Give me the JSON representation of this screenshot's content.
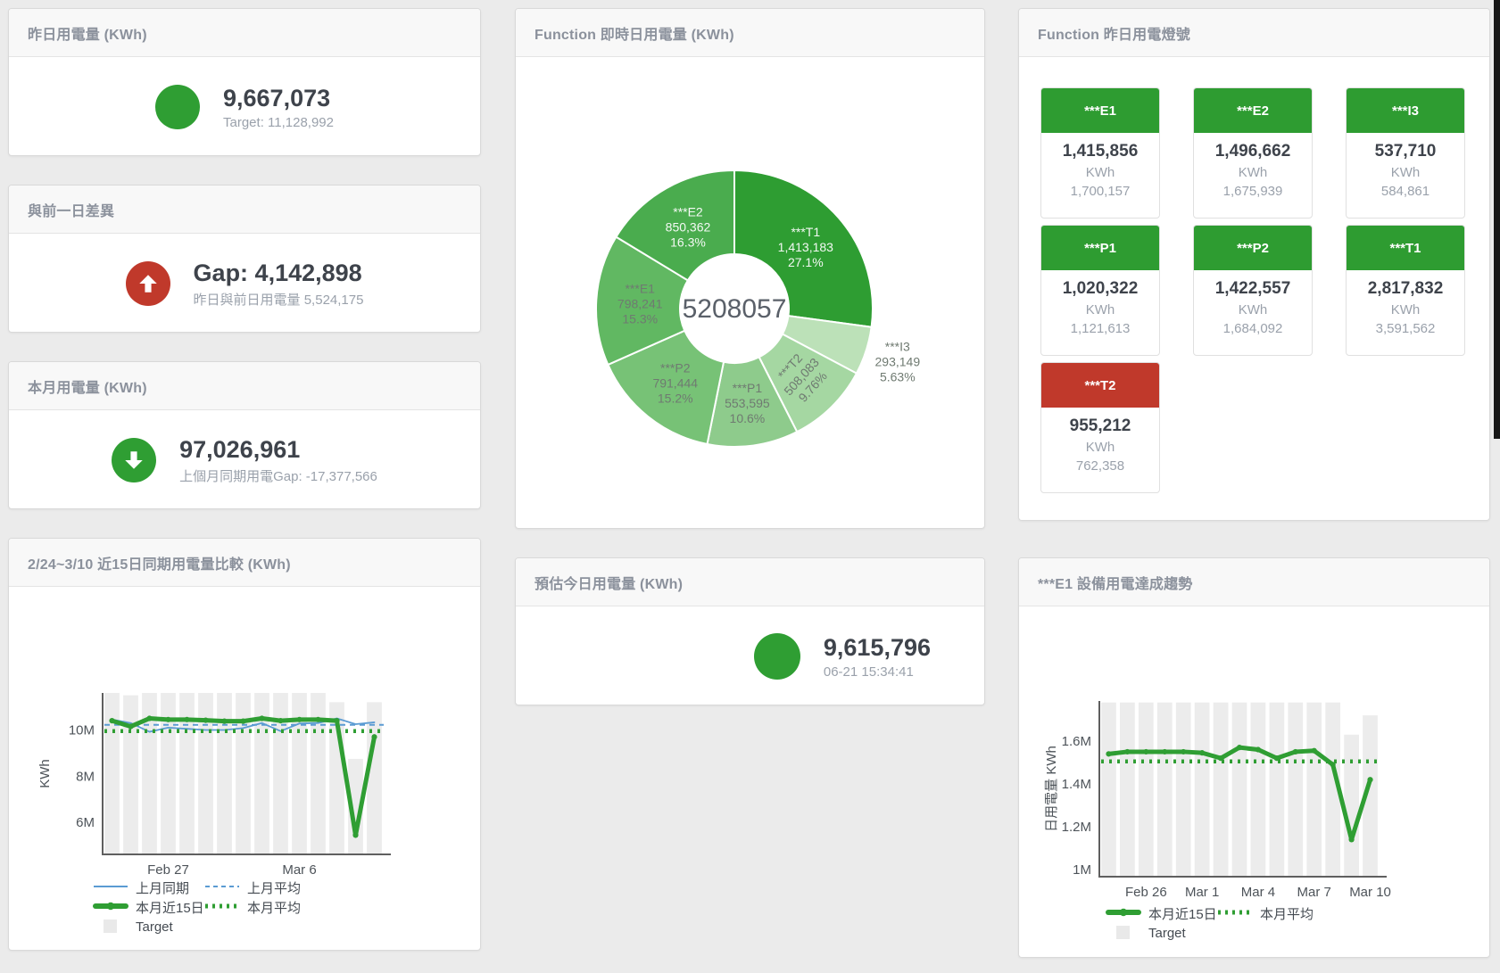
{
  "colors": {
    "green": "#2f9e33",
    "red": "#c0392b",
    "blue": "#5b9bd3",
    "bar": "#ececec",
    "title": "#8b919c",
    "number": "#3e434b",
    "sub": "#9aa1ab"
  },
  "cards": {
    "yesterday": {
      "title": "昨日用電量 (KWh)",
      "value": "9,667,073",
      "sub": "Target: 11,128,992"
    },
    "gap": {
      "title": "與前一日差異",
      "value": "Gap: 4,142,898",
      "sub": "昨日與前日用電量 5,524,175"
    },
    "month": {
      "title": "本月用電量 (KWh)",
      "value": "97,026,961",
      "sub": "上個月同期用電Gap: -17,377,566"
    },
    "estimate": {
      "title": "預估今日用電量 (KWh)",
      "value": "9,615,796",
      "sub": "06-21 15:34:41"
    },
    "donut": {
      "title": "Function 即時日用電量 (KWh)"
    },
    "compare": {
      "title": "2/24~3/10 近15日同期用電量比較 (KWh)"
    },
    "trend": {
      "title": "***E1 設備用電達成趨勢"
    },
    "lights": {
      "title": "Function 昨日用電燈號",
      "unit": "KWh",
      "tiles": [
        {
          "name": "***E1",
          "value": "1,415,856",
          "target": "1,700,157",
          "color": "green"
        },
        {
          "name": "***E2",
          "value": "1,496,662",
          "target": "1,675,939",
          "color": "green"
        },
        {
          "name": "***I3",
          "value": "537,710",
          "target": "584,861",
          "color": "green"
        },
        {
          "name": "***P1",
          "value": "1,020,322",
          "target": "1,121,613",
          "color": "green"
        },
        {
          "name": "***P2",
          "value": "1,422,557",
          "target": "1,684,092",
          "color": "green"
        },
        {
          "name": "***T1",
          "value": "2,817,832",
          "target": "3,591,562",
          "color": "green"
        },
        {
          "name": "***T2",
          "value": "955,212",
          "target": "762,358",
          "color": "red"
        }
      ]
    }
  },
  "chart_data": [
    {
      "id": "realtime-donut",
      "type": "pie",
      "title": "Function 即時日用電量 (KWh)",
      "center_label": "5208057",
      "total": 5208057,
      "slices": [
        {
          "name": "***T1",
          "value": 1413183,
          "value_label": "1,413,183",
          "pct": "27.1%",
          "color": "#2e9d32",
          "label_color": "#f4f9f4"
        },
        {
          "name": "***I3",
          "value": 293149,
          "value_label": "293,149",
          "pct": "5.63%",
          "color": "#bce1b8",
          "label_color": "#6f7a71",
          "label_outside": true
        },
        {
          "name": "***T2",
          "value": 508083,
          "value_label": "508,083",
          "pct": "9.76%",
          "color": "#a5d7a2",
          "label_color": "#6f7a71",
          "label_rotate": -48
        },
        {
          "name": "***P1",
          "value": 553595,
          "value_label": "553,595",
          "pct": "10.6%",
          "color": "#8ecb8c",
          "label_color": "#6f7a71"
        },
        {
          "name": "***P2",
          "value": 791444,
          "value_label": "791,444",
          "pct": "15.2%",
          "color": "#77c276",
          "label_color": "#6f7a71"
        },
        {
          "name": "***E1",
          "value": 798241,
          "value_label": "798,241",
          "pct": "15.3%",
          "color": "#61b862",
          "label_color": "#6f7a71"
        },
        {
          "name": "***E2",
          "value": 850362,
          "value_label": "850,362",
          "pct": "16.3%",
          "color": "#4aac4e",
          "label_color": "#f4f9f4"
        }
      ]
    },
    {
      "id": "compare15",
      "type": "line",
      "title": "2/24~3/10 近15日同期用電量比較 (KWh)",
      "ylabel": "KWh",
      "unit": "M KWh",
      "ylim": [
        4.62,
        11.6
      ],
      "x_categories": [
        "2/24",
        "2/25",
        "2/26",
        "2/27",
        "2/28",
        "3/1",
        "3/2",
        "3/3",
        "3/4",
        "3/5",
        "3/6",
        "3/7",
        "3/8",
        "3/9",
        "3/10"
      ],
      "x_ticks": [
        {
          "index": 3,
          "label": "Feb 27"
        },
        {
          "index": 10,
          "label": "Mar 6"
        }
      ],
      "y_ticks": [
        {
          "v": 10,
          "label": "10M"
        },
        {
          "v": 8,
          "label": "8M"
        },
        {
          "v": 6,
          "label": "6M"
        }
      ],
      "bar_color": "#ececec",
      "bar_series_name": "Target",
      "target_bars": [
        11.6,
        11.5,
        11.6,
        11.6,
        11.6,
        11.6,
        11.6,
        11.6,
        11.6,
        11.6,
        11.6,
        11.6,
        11.2,
        8.75,
        11.2
      ],
      "series": [
        {
          "name": "上月同期",
          "style": "thin",
          "color": "#5b9bd3",
          "values": [
            10.45,
            10.3,
            9.92,
            10.1,
            10.05,
            10.0,
            10.0,
            10.08,
            10.3,
            9.95,
            10.28,
            10.3,
            10.5,
            10.25,
            10.33
          ]
        },
        {
          "name": "上月平均",
          "style": "dashed",
          "color": "#5b9bd3",
          "avg": 10.22
        },
        {
          "name": "本月近15日",
          "style": "thick",
          "color": "#2f9e33",
          "values": [
            10.4,
            10.15,
            10.5,
            10.45,
            10.45,
            10.42,
            10.38,
            10.38,
            10.5,
            10.4,
            10.45,
            10.45,
            10.4,
            5.45,
            9.7
          ]
        },
        {
          "name": "本月平均",
          "style": "dotted",
          "color": "#2f9e33",
          "avg": 9.95
        }
      ],
      "legend_rows": [
        [
          {
            "swatch": "line-thin",
            "color": "#5b9bd3",
            "label": "上月同期"
          },
          {
            "swatch": "line-dashed",
            "color": "#5b9bd3",
            "label": "上月平均"
          }
        ],
        [
          {
            "swatch": "line-thick",
            "color": "#2f9e33",
            "label": "本月近15日"
          },
          {
            "swatch": "line-dotted",
            "color": "#2f9e33",
            "label": "本月平均"
          }
        ],
        [
          {
            "swatch": "square",
            "color": "#e9e9e9",
            "label": "Target"
          }
        ]
      ]
    },
    {
      "id": "e1-trend",
      "type": "line",
      "title": "***E1 設備用電達成趨勢",
      "ylabel": "日用電量 KWh",
      "unit": "M KWh",
      "ylim": [
        0.967,
        1.787
      ],
      "x_categories": [
        "2/24",
        "2/25",
        "2/26",
        "2/27",
        "2/28",
        "3/1",
        "3/2",
        "3/3",
        "3/4",
        "3/5",
        "3/6",
        "3/7",
        "3/8",
        "3/9",
        "3/10"
      ],
      "x_ticks": [
        {
          "index": 2,
          "label": "Feb 26"
        },
        {
          "index": 5,
          "label": "Mar 1"
        },
        {
          "index": 8,
          "label": "Mar 4"
        },
        {
          "index": 11,
          "label": "Mar 7"
        },
        {
          "index": 14,
          "label": "Mar 10"
        }
      ],
      "y_ticks": [
        {
          "v": 1.6,
          "label": "1.6M"
        },
        {
          "v": 1.4,
          "label": "1.4M"
        },
        {
          "v": 1.2,
          "label": "1.2M"
        },
        {
          "v": 1,
          "label": "1M"
        }
      ],
      "bar_color": "#ececec",
      "bar_series_name": "Target",
      "target_bars": [
        1.78,
        1.78,
        1.78,
        1.78,
        1.78,
        1.78,
        1.78,
        1.78,
        1.78,
        1.78,
        1.78,
        1.78,
        1.78,
        1.63,
        1.72
      ],
      "series": [
        {
          "name": "本月近15日",
          "style": "thick",
          "color": "#2f9e33",
          "values": [
            1.54,
            1.55,
            1.55,
            1.55,
            1.55,
            1.545,
            1.52,
            1.57,
            1.56,
            1.52,
            1.55,
            1.555,
            1.49,
            1.14,
            1.42
          ]
        },
        {
          "name": "本月平均",
          "style": "dotted",
          "color": "#2f9e33",
          "avg": 1.505
        }
      ],
      "legend_rows": [
        [
          {
            "swatch": "line-thick",
            "color": "#2f9e33",
            "label": "本月近15日"
          },
          {
            "swatch": "line-dotted",
            "color": "#2f9e33",
            "label": "本月平均"
          }
        ],
        [
          {
            "swatch": "square",
            "color": "#e9e9e9",
            "label": "Target"
          }
        ]
      ]
    }
  ]
}
